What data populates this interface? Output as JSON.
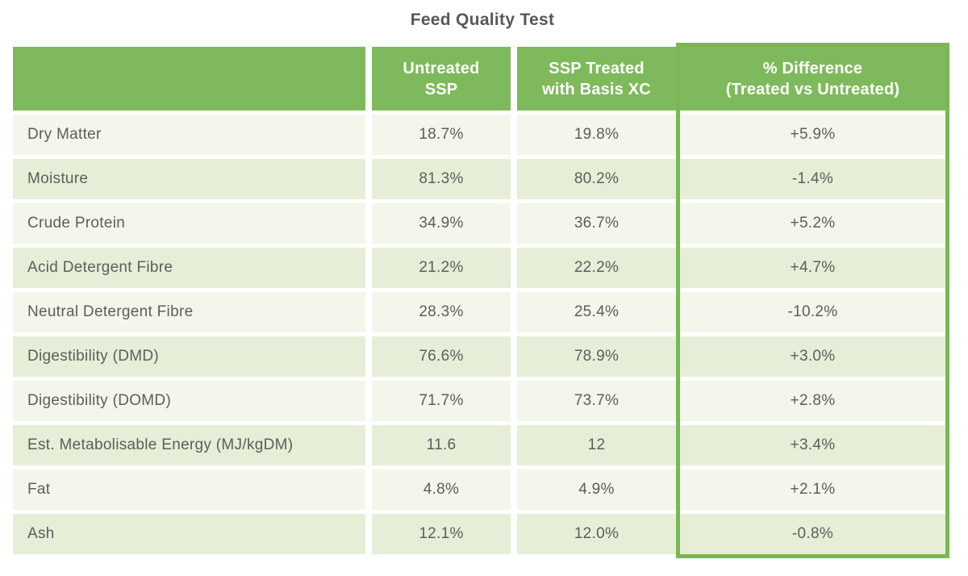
{
  "title": "Feed Quality Test",
  "chart_data": {
    "type": "table",
    "title": "Feed Quality Test",
    "columns": [
      "Untreated SSP",
      "SSP Treated with Basis XC",
      "% Difference (Treated vs Untreated)"
    ],
    "columns_display": [
      "Untreated\nSSP",
      "SSP Treated\nwith Basis XC",
      "% Difference\n(Treated vs Untreated)"
    ],
    "rows": [
      {
        "label": "Dry Matter",
        "untreated": "18.7%",
        "treated": "19.8%",
        "diff": "+5.9%"
      },
      {
        "label": "Moisture",
        "untreated": "81.3%",
        "treated": "80.2%",
        "diff": "-1.4%"
      },
      {
        "label": "Crude Protein",
        "untreated": "34.9%",
        "treated": "36.7%",
        "diff": "+5.2%"
      },
      {
        "label": "Acid Detergent Fibre",
        "untreated": "21.2%",
        "treated": "22.2%",
        "diff": "+4.7%"
      },
      {
        "label": "Neutral Detergent Fibre",
        "untreated": "28.3%",
        "treated": "25.4%",
        "diff": "-10.2%"
      },
      {
        "label": "Digestibility (DMD)",
        "untreated": "76.6%",
        "treated": "78.9%",
        "diff": "+3.0%"
      },
      {
        "label": "Digestibility (DOMD)",
        "untreated": "71.7%",
        "treated": "73.7%",
        "diff": "+2.8%"
      },
      {
        "label": "Est. Metabolisable Energy (MJ/kgDM)",
        "untreated": "11.6",
        "treated": "12",
        "diff": "+3.4%"
      },
      {
        "label": "Fat",
        "untreated": "4.8%",
        "treated": "4.9%",
        "diff": "+2.1%"
      },
      {
        "label": "Ash",
        "untreated": "12.1%",
        "treated": "12.0%",
        "diff": "-0.8%"
      }
    ]
  },
  "colors": {
    "header_green": "#7eba5b",
    "highlight_border_green": "#79b755",
    "row_light": "#f3f6ea",
    "row_dark": "#e6eed8",
    "body_text": "#5b6057",
    "title_text": "#58585a",
    "header_text": "#ffffff"
  }
}
